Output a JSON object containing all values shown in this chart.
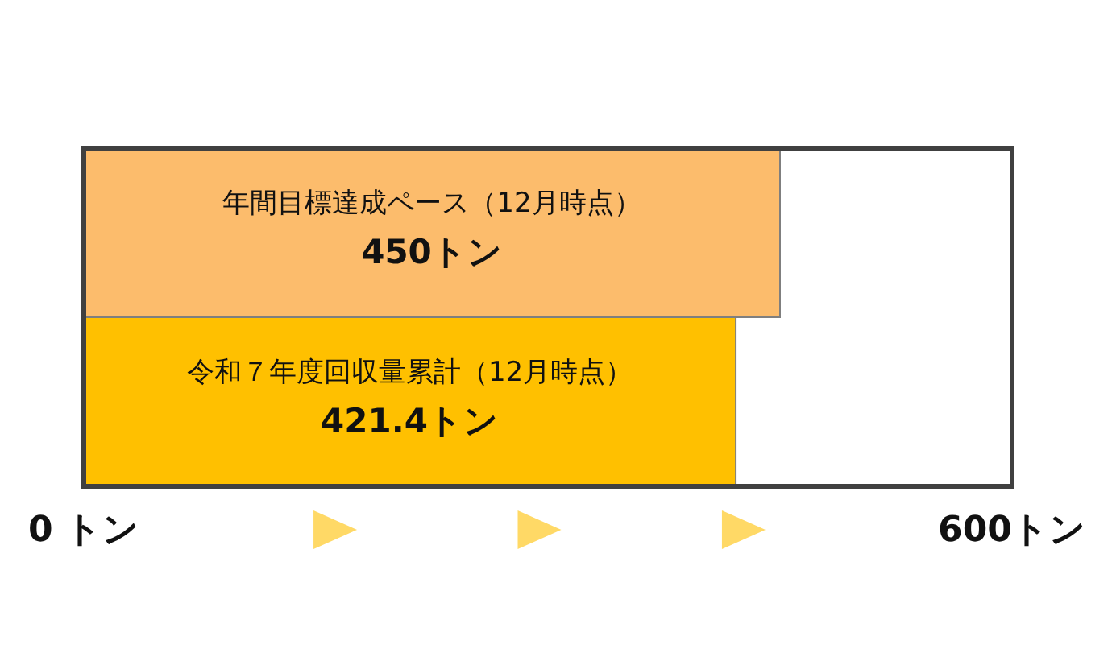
{
  "chart_data": {
    "type": "bar",
    "orientation": "horizontal",
    "categories": [
      "年間目標達成ペース（12月時点）",
      "令和７年度回収量累計（12月時点）"
    ],
    "values": [
      450,
      421.4
    ],
    "colors": [
      "#fcbc6c",
      "#ffc000"
    ],
    "value_labels": [
      "450トン",
      "421.4トン"
    ],
    "xlim": [
      0,
      600
    ],
    "xticks": [
      {
        "value": 0,
        "label": "0 トン"
      },
      {
        "value": 600,
        "label": "600トン"
      }
    ]
  }
}
